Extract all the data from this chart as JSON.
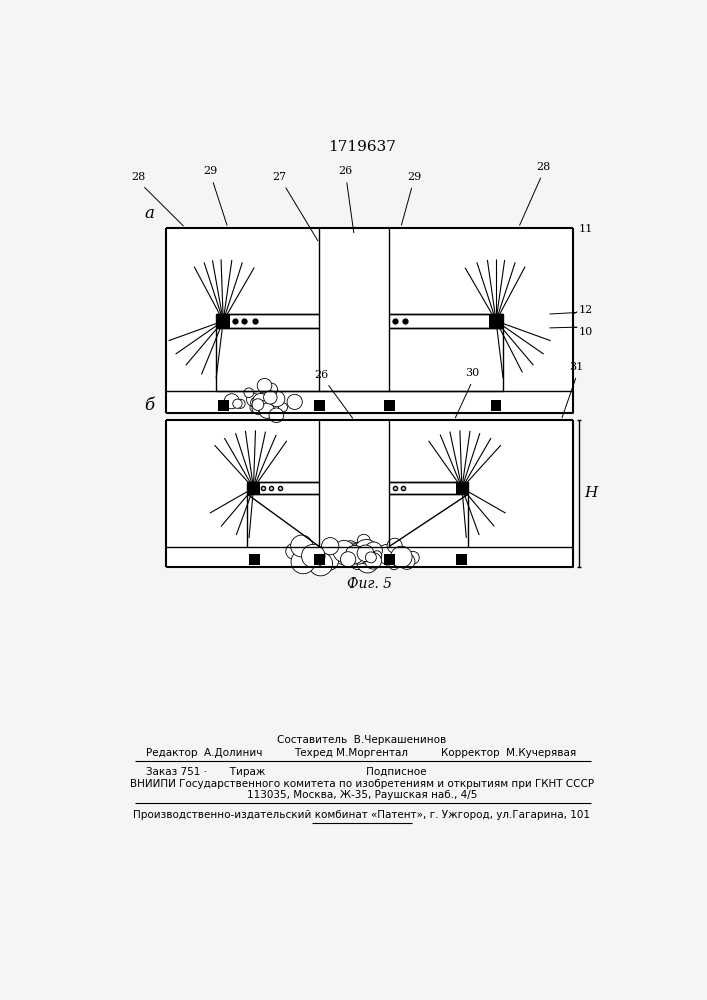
{
  "title": "1719637",
  "fig_label": "Фиг. 5",
  "page_color": "#f5f5f5",
  "label_a": "а",
  "label_b": "б",
  "footer_line1": "Составитель  В.Черкашенинов",
  "footer_line2_left": "Редактор  А.Долинич",
  "footer_line2_mid": "Техред М.Моргентал",
  "footer_line2_right": "Корректор  М.Кучерявая",
  "footer_line3": "Заказ 751 ·       Тираж                               Подписное",
  "footer_line4": "ВНИИПИ Государственного комитета по изобретениям и открытиям при ГКНТ СССР",
  "footer_line5": "113035, Москва, Ж-35, Раушская наб., 4/5",
  "footer_line6": "Производственно-издательский комбинат «Патент», г. Ужгород, ул.Гагарина, 101"
}
